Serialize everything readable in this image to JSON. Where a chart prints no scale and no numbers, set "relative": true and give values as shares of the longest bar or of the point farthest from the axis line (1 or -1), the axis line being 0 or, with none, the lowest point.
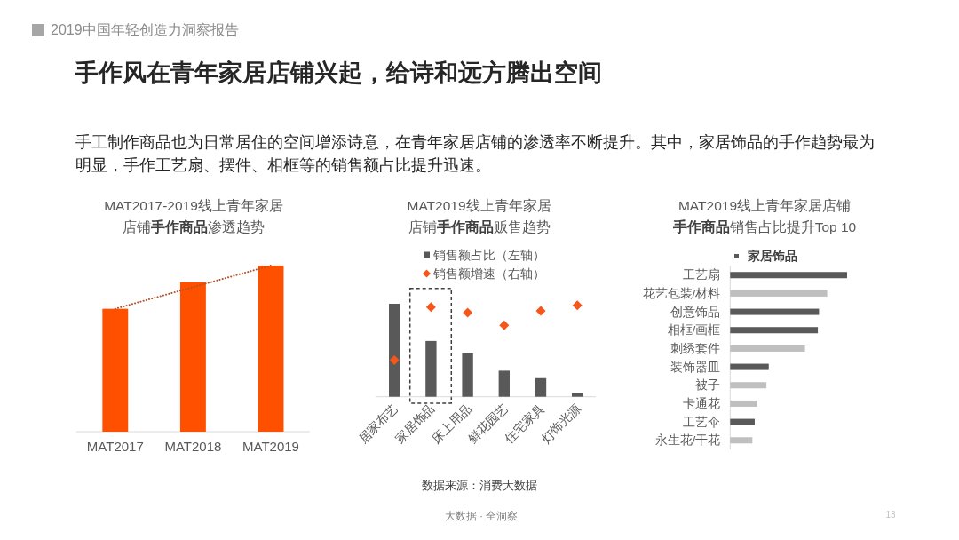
{
  "chart_data": [
    {
      "type": "other",
      "title": "手作风在青年家居店铺兴起，给诗和远方腾出空间",
      "subtitle": "手工制作商品也为日常居住的空间增添诗意，在青年家居店铺的渗透率不断提升。其中，家居饰品的手作趋势最为明显，手作工艺扇、摆件、相框等的销售额占比提升迅速。",
      "annotations": [
        "2019中国年轻创造力洞察报告",
        "大数据 · 全洞察",
        "13"
      ]
    },
    {
      "type": "bar",
      "title": "MAT2017-2019线上青年家居店铺**手作商品**渗透趋势",
      "categories": [
        "MAT2017",
        "MAT2018",
        "MAT2019"
      ],
      "relative": true,
      "series": [
        {
          "color": "#ff5000",
          "values": [
            0.74,
            0.9,
            1
          ]
        },
        {
          "type": "line",
          "color": "#b4532a",
          "line_style": "dotted",
          "marker": "none",
          "x": [
            "MAT2017",
            "MAT2019"
          ],
          "values": [
            0.74,
            1
          ]
        }
      ]
    },
    {
      "type": "bar",
      "title": "MAT2019线上青年家居店铺**手作商品**贩售趋势",
      "categories": [
        "居家布艺",
        "家居饰品",
        "床上用品",
        "鲜花园艺",
        "住宅家具",
        "灯饰光源"
      ],
      "relative": true,
      "legend": "top",
      "series": [
        {
          "name": "销售额占比（左轴）",
          "color": "#595959",
          "values": [
            1,
            0.6,
            0.47,
            0.28,
            0.2,
            0.04
          ]
        },
        {
          "name": "销售额增速（右轴）",
          "type": "scatter",
          "axis": "y2",
          "marker": "diamond",
          "color": "#f5571a",
          "values": [
            0.4,
            0.98,
            0.92,
            0.78,
            0.94,
            1
          ]
        }
      ],
      "annotations": [
        "数据来源：消费大数据"
      ]
    },
    {
      "type": "bar",
      "orientation": "horizontal",
      "stacked": true,
      "relative": true,
      "legend": "top",
      "title": "MAT2019线上青年家居店铺**手作商品**销售占比提升Top 10",
      "categories": [
        "工艺扇",
        "花艺包装/材料",
        "创意饰品",
        "相框/画框",
        "刺绣套件",
        "装饰器皿",
        "被子",
        "卡通花",
        "工艺伞",
        "永生花/干花"
      ],
      "series": [
        {
          "name": "家居饰品",
          "color": "#595959",
          "values": [
            1,
            null,
            0.76,
            0.75,
            null,
            0.33,
            null,
            null,
            0.21,
            null
          ]
        },
        {
          "color": "#bfbfbf",
          "values": [
            null,
            0.83,
            null,
            null,
            0.64,
            null,
            0.31,
            0.23,
            null,
            0.19
          ]
        }
      ]
    }
  ]
}
